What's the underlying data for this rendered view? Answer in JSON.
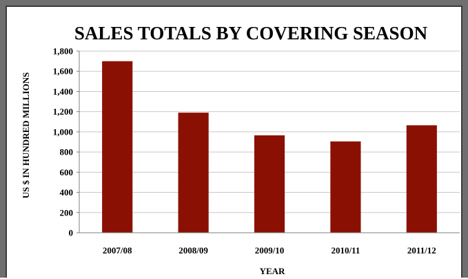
{
  "chart_data": {
    "type": "bar",
    "title": "SALES TOTALS BY COVERING SEASON",
    "xlabel": "YEAR",
    "ylabel": "US $ IN HUNDRED MILLIONS",
    "categories": [
      "2007/08",
      "2008/09",
      "2009/10",
      "2010/11",
      "2011/12"
    ],
    "values": [
      1700,
      1190,
      965,
      905,
      1065
    ],
    "ylim": [
      0,
      1800
    ],
    "yticks": [
      0,
      200,
      400,
      600,
      800,
      1000,
      1200,
      1400,
      1600,
      1800
    ],
    "ytick_labels": [
      "0",
      "200",
      "400",
      "600",
      "800",
      "1,000",
      "1,200",
      "1,400",
      "1,600",
      "1,800"
    ],
    "grid": true,
    "legend": "none",
    "bar_color": "#8b1004",
    "grid_color": "#c8c8c8"
  }
}
